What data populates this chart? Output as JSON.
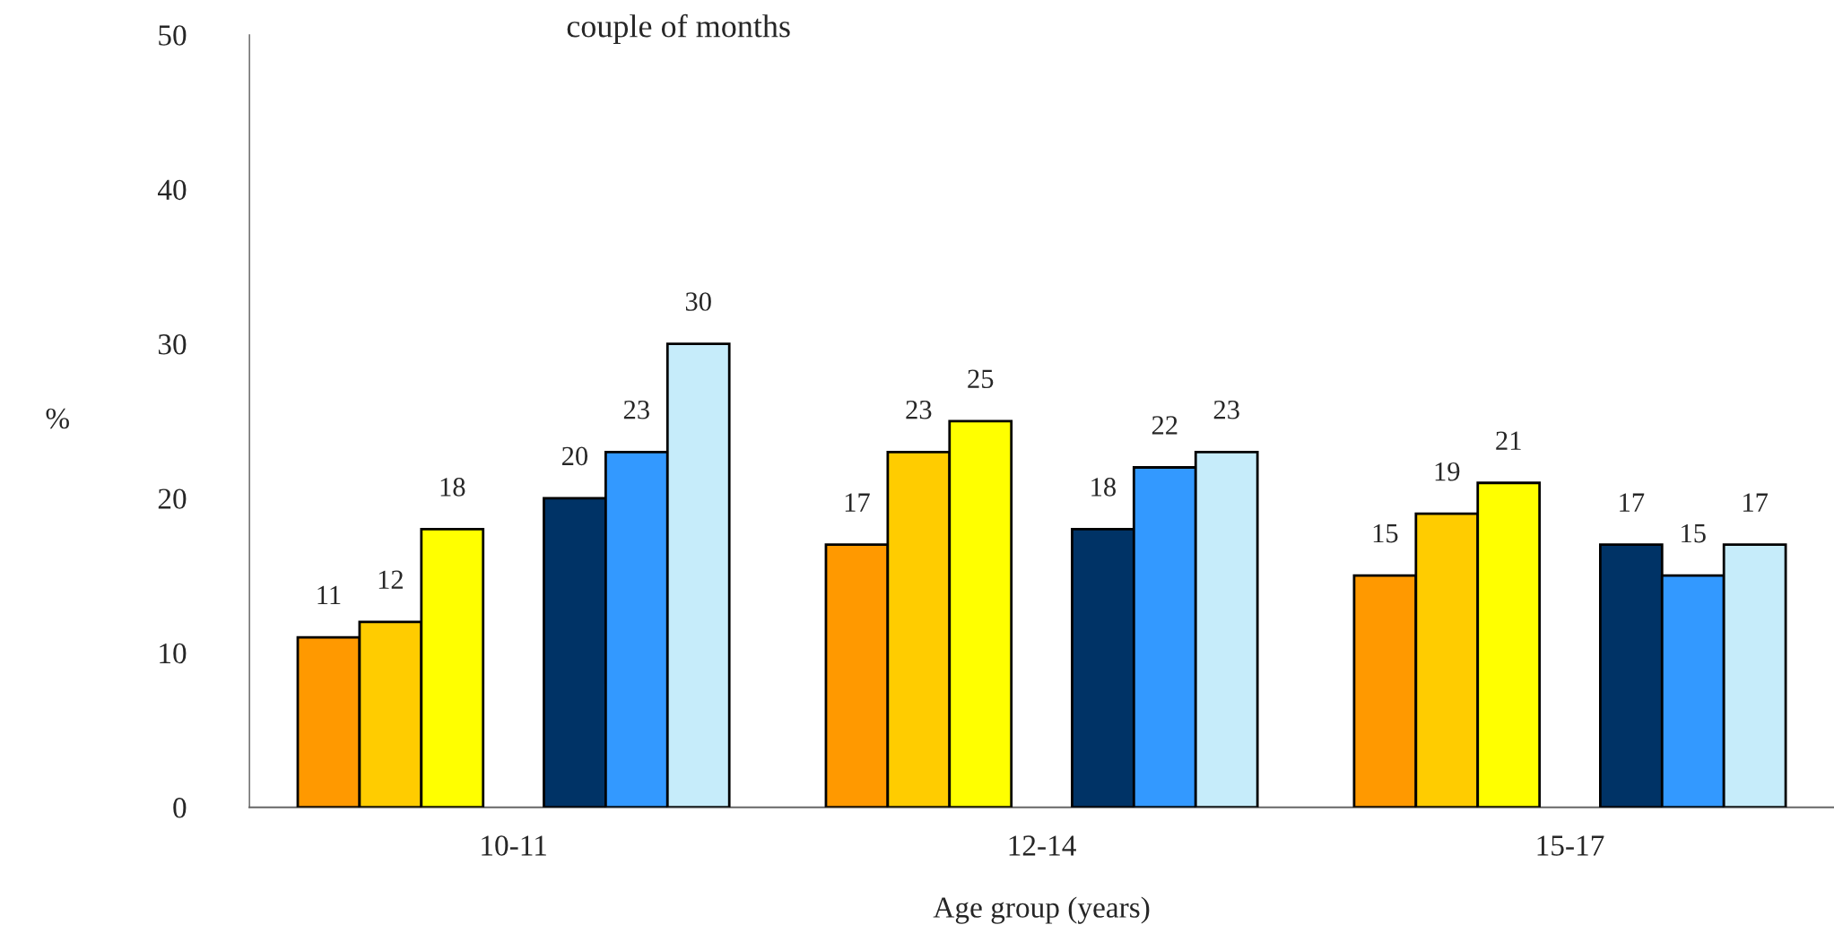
{
  "chart_data": {
    "type": "bar",
    "title": "couple of months",
    "xlabel": "Age group (years)",
    "ylabel": "%",
    "categories": [
      "10-11",
      "12-14",
      "15-17"
    ],
    "series": [
      {
        "color": "#ff9900",
        "values": [
          11,
          17,
          15
        ]
      },
      {
        "color": "#ffcc00",
        "values": [
          12,
          23,
          19
        ]
      },
      {
        "color": "#ffff00",
        "values": [
          18,
          25,
          21
        ]
      },
      {
        "color": "#003366",
        "values": [
          20,
          18,
          17
        ]
      },
      {
        "color": "#3399ff",
        "values": [
          23,
          22,
          15
        ]
      },
      {
        "color": "#c6ecfa",
        "values": [
          30,
          23,
          17
        ]
      }
    ],
    "ylim": [
      0,
      50
    ],
    "yticks": [
      0,
      10,
      20,
      30,
      40,
      50
    ],
    "grid": false,
    "legend": false,
    "data_labels": true
  }
}
